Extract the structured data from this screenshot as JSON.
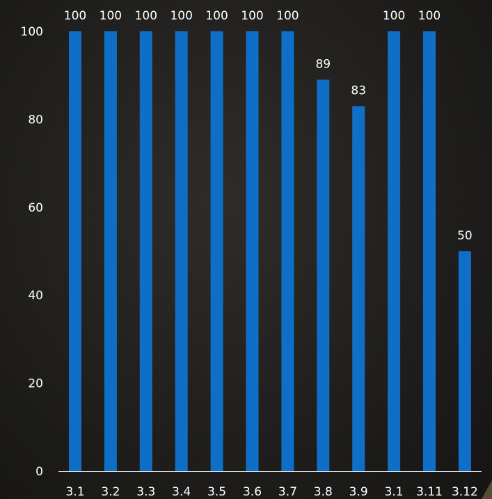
{
  "chart_data": {
    "type": "bar",
    "categories": [
      "3.1",
      "3.2",
      "3.3",
      "3.4",
      "3.5",
      "3.6",
      "3.7",
      "3.8",
      "3.9",
      "3.1",
      "3.11",
      "3.12"
    ],
    "series": [
      {
        "values": [
          100,
          100,
          100,
          100,
          100,
          100,
          100,
          89,
          83,
          100,
          100,
          50
        ]
      }
    ],
    "ylim": [
      0,
      100
    ],
    "yticks": [
      0,
      20,
      40,
      60,
      80,
      100
    ],
    "data_labels": true,
    "legend": false,
    "grid": false,
    "colors": {
      "bar": "#0f6fc6",
      "text": "#ffffff",
      "axis": "#d9d9d9",
      "background": "#1f1e1c"
    }
  }
}
